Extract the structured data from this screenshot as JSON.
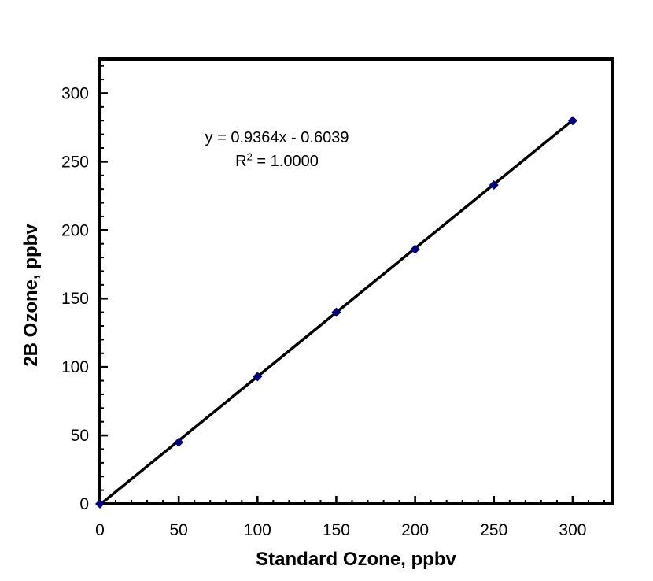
{
  "figure": {
    "background": "#ffffff",
    "x_axis_title": "Standard Ozone, ppbv",
    "y_axis_title": "2B Ozone, ppbv",
    "annotation": {
      "equation": "y = 0.9364x - 0.6039",
      "r_squared_base": "R",
      "r_squared_sup": "2",
      "r_squared_rest": " = 1.0000"
    }
  },
  "chart_data": {
    "type": "scatter",
    "title": "",
    "xlabel": "Standard Ozone, ppbv",
    "ylabel": "2B Ozone, ppbv",
    "x": [
      0,
      50,
      100,
      150,
      200,
      250,
      300
    ],
    "y": [
      0,
      45,
      93,
      140,
      186,
      233,
      280
    ],
    "trendline": {
      "slope": 0.9364,
      "intercept": -0.6039,
      "r_squared": 1.0,
      "equation": "y = 0.9364x - 0.6039",
      "r_squared_label": "R2 = 1.0000",
      "color": "#000000",
      "x_start": 0,
      "x_end": 300
    },
    "xlim": [
      0,
      325
    ],
    "ylim": [
      0,
      325
    ],
    "x_major_ticks": [
      0,
      50,
      100,
      150,
      200,
      250,
      300
    ],
    "y_major_ticks": [
      0,
      50,
      100,
      150,
      200,
      250,
      300
    ],
    "minor_tick_step": 10,
    "grid": false,
    "legend": "none",
    "marker": {
      "shape": "diamond",
      "color": "#000080",
      "size": 12
    },
    "frame_color": "#000000"
  }
}
